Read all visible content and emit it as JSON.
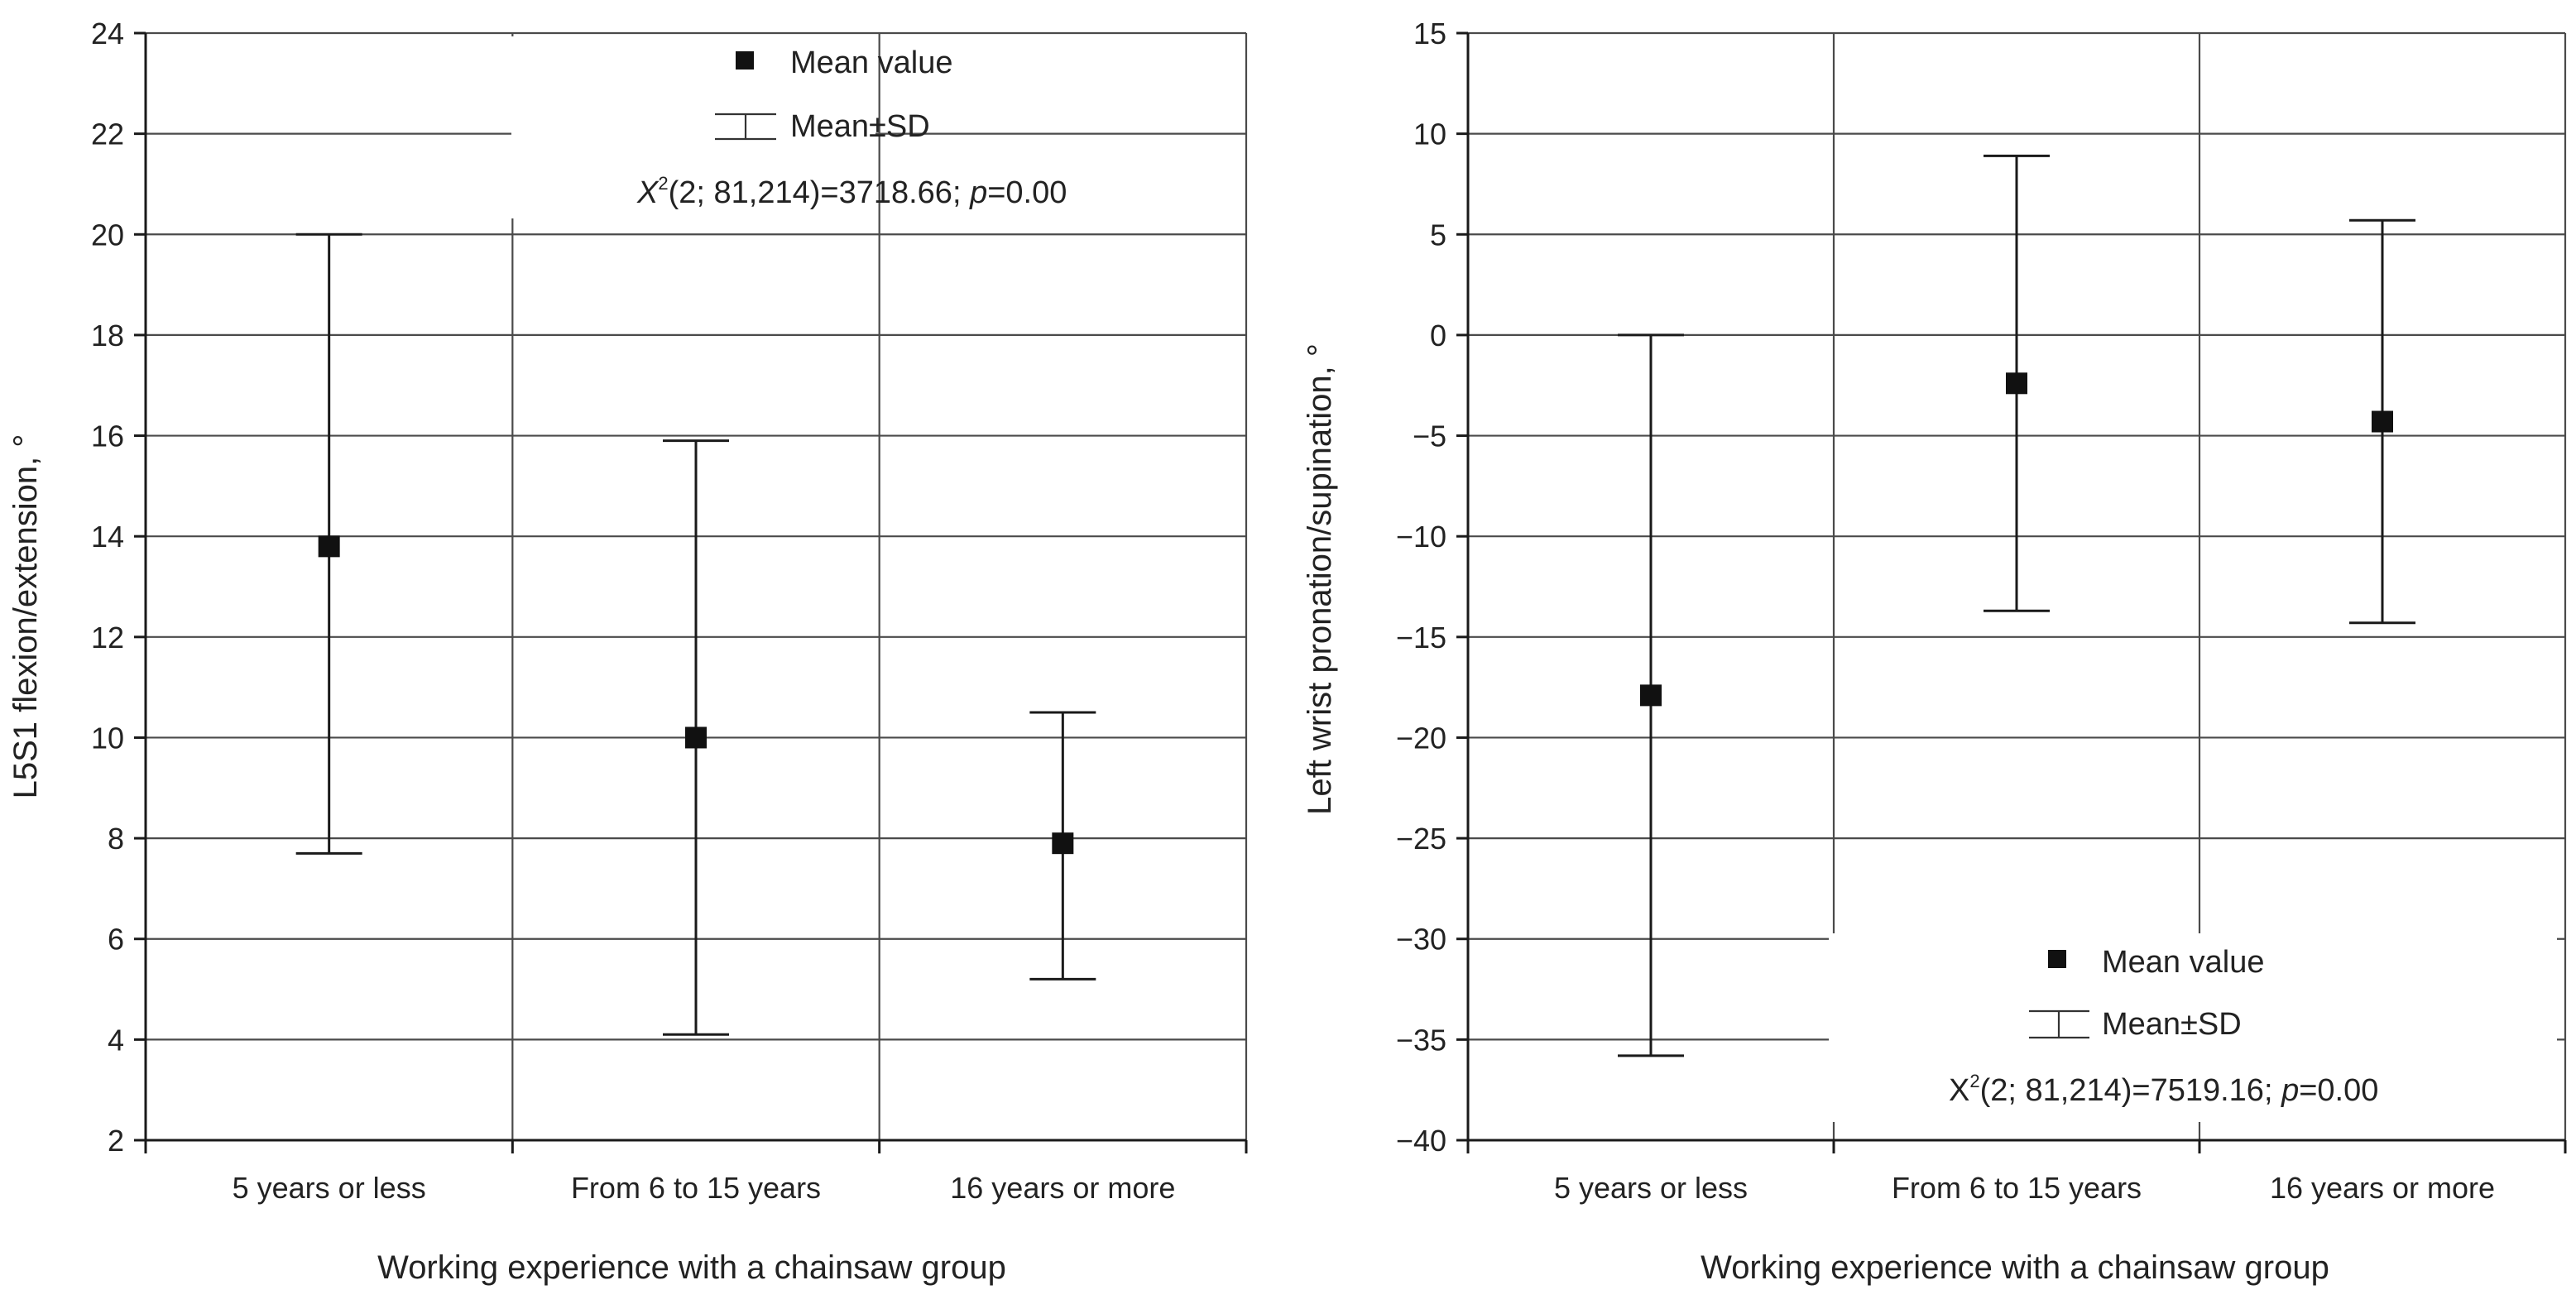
{
  "chart_data": [
    {
      "type": "errorbar",
      "categories": [
        "5 years or less",
        "From 6 to 15 years",
        "16 years or more"
      ],
      "series": [
        {
          "name": "Mean value",
          "values": [
            13.8,
            10.0,
            7.9
          ]
        },
        {
          "name": "Mean±SD",
          "lower": [
            7.7,
            4.1,
            5.2
          ],
          "upper": [
            20.0,
            15.9,
            10.5
          ]
        }
      ],
      "xlabel": "Working experience with a chainsaw group",
      "ylabel": "L5S1 flexion/extension, °",
      "ylim": [
        2,
        24
      ],
      "yticks": [
        2,
        4,
        6,
        8,
        10,
        12,
        14,
        16,
        18,
        20,
        22,
        24
      ],
      "legend": {
        "position": "top-center",
        "mean_label": "Mean value",
        "sd_label": "Mean±SD",
        "stat_x": "X",
        "stat_sup": "2",
        "stat_mid": "(2; 81,214)=3718.66; ",
        "stat_p": "p",
        "stat_end": "=0.00"
      },
      "grid": true
    },
    {
      "type": "errorbar",
      "categories": [
        "5 years or less",
        "From 6 to 15 years",
        "16 years or more"
      ],
      "series": [
        {
          "name": "Mean value",
          "values": [
            -17.9,
            -2.4,
            -4.3
          ]
        },
        {
          "name": "Mean±SD",
          "lower": [
            -35.8,
            -13.7,
            -14.3
          ],
          "upper": [
            0.0,
            8.9,
            5.7
          ]
        }
      ],
      "xlabel": "Working experience with a chainsaw group",
      "ylabel": "Left wrist pronation/supination, °",
      "ylim": [
        -40,
        15
      ],
      "yticks": [
        -40,
        -35,
        -30,
        -25,
        -20,
        -15,
        -10,
        -5,
        0,
        5,
        10,
        15
      ],
      "legend": {
        "position": "bottom-center",
        "mean_label": "Mean value",
        "sd_label": "Mean±SD",
        "stat_x": "X",
        "stat_sup": "2",
        "stat_mid": "(2; 81,214)=7519.16; ",
        "stat_p": "p",
        "stat_end": "=0.00"
      },
      "grid": true
    }
  ]
}
